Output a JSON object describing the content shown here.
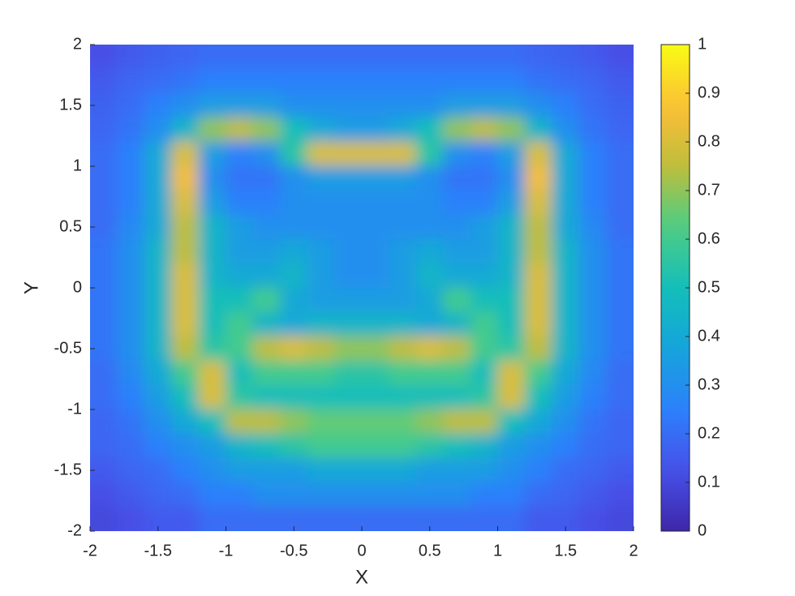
{
  "chart_data": {
    "type": "heatmap",
    "xlabel": "X",
    "ylabel": "Y",
    "x": [
      -1.9,
      -1.7,
      -1.5,
      -1.3,
      -1.1,
      -0.9,
      -0.7,
      -0.5,
      -0.3,
      -0.1,
      0.1,
      0.3,
      0.5,
      0.7,
      0.9,
      1.1,
      1.3,
      1.5,
      1.7,
      1.9
    ],
    "y": [
      1.9,
      1.7,
      1.5,
      1.3,
      1.1,
      0.9,
      0.7,
      0.5,
      0.3,
      0.1,
      -0.1,
      -0.3,
      -0.5,
      -0.7,
      -0.9,
      -1.1,
      -1.3,
      -1.5,
      -1.7,
      -1.9
    ],
    "z": [
      [
        0.12,
        0.15,
        0.17,
        0.18,
        0.2,
        0.2,
        0.2,
        0.2,
        0.2,
        0.2,
        0.2,
        0.2,
        0.2,
        0.2,
        0.2,
        0.2,
        0.18,
        0.17,
        0.15,
        0.12
      ],
      [
        0.15,
        0.18,
        0.2,
        0.22,
        0.25,
        0.25,
        0.25,
        0.25,
        0.25,
        0.25,
        0.25,
        0.25,
        0.25,
        0.25,
        0.25,
        0.25,
        0.22,
        0.2,
        0.18,
        0.15
      ],
      [
        0.17,
        0.2,
        0.25,
        0.3,
        0.35,
        0.35,
        0.35,
        0.3,
        0.3,
        0.3,
        0.3,
        0.3,
        0.3,
        0.35,
        0.35,
        0.35,
        0.3,
        0.25,
        0.2,
        0.17
      ],
      [
        0.18,
        0.22,
        0.3,
        0.45,
        0.7,
        0.75,
        0.7,
        0.5,
        0.4,
        0.35,
        0.35,
        0.4,
        0.5,
        0.7,
        0.75,
        0.7,
        0.45,
        0.3,
        0.22,
        0.18
      ],
      [
        0.2,
        0.25,
        0.4,
        0.8,
        0.35,
        0.25,
        0.3,
        0.55,
        0.8,
        0.8,
        0.8,
        0.8,
        0.55,
        0.3,
        0.25,
        0.35,
        0.8,
        0.4,
        0.25,
        0.2
      ],
      [
        0.2,
        0.25,
        0.4,
        0.85,
        0.3,
        0.22,
        0.22,
        0.3,
        0.35,
        0.35,
        0.35,
        0.35,
        0.3,
        0.22,
        0.22,
        0.3,
        0.85,
        0.4,
        0.25,
        0.2
      ],
      [
        0.2,
        0.25,
        0.4,
        0.8,
        0.35,
        0.25,
        0.25,
        0.3,
        0.3,
        0.3,
        0.3,
        0.3,
        0.3,
        0.25,
        0.25,
        0.35,
        0.8,
        0.4,
        0.25,
        0.2
      ],
      [
        0.2,
        0.28,
        0.4,
        0.75,
        0.45,
        0.35,
        0.3,
        0.3,
        0.3,
        0.3,
        0.3,
        0.3,
        0.3,
        0.3,
        0.35,
        0.45,
        0.75,
        0.4,
        0.28,
        0.2
      ],
      [
        0.22,
        0.3,
        0.45,
        0.75,
        0.45,
        0.35,
        0.35,
        0.4,
        0.35,
        0.3,
        0.3,
        0.35,
        0.4,
        0.35,
        0.35,
        0.45,
        0.75,
        0.45,
        0.3,
        0.22
      ],
      [
        0.22,
        0.3,
        0.45,
        0.8,
        0.45,
        0.4,
        0.4,
        0.45,
        0.35,
        0.3,
        0.3,
        0.35,
        0.45,
        0.4,
        0.4,
        0.45,
        0.8,
        0.45,
        0.3,
        0.22
      ],
      [
        0.22,
        0.3,
        0.45,
        0.8,
        0.5,
        0.5,
        0.6,
        0.4,
        0.35,
        0.35,
        0.35,
        0.35,
        0.4,
        0.6,
        0.5,
        0.5,
        0.8,
        0.45,
        0.3,
        0.22
      ],
      [
        0.22,
        0.3,
        0.45,
        0.8,
        0.5,
        0.6,
        0.45,
        0.4,
        0.45,
        0.45,
        0.45,
        0.45,
        0.4,
        0.45,
        0.6,
        0.5,
        0.8,
        0.45,
        0.3,
        0.22
      ],
      [
        0.22,
        0.3,
        0.45,
        0.75,
        0.55,
        0.6,
        0.75,
        0.8,
        0.75,
        0.7,
        0.7,
        0.75,
        0.8,
        0.75,
        0.6,
        0.55,
        0.75,
        0.45,
        0.3,
        0.22
      ],
      [
        0.2,
        0.28,
        0.4,
        0.6,
        0.8,
        0.5,
        0.6,
        0.6,
        0.6,
        0.55,
        0.55,
        0.6,
        0.6,
        0.6,
        0.5,
        0.8,
        0.6,
        0.4,
        0.28,
        0.2
      ],
      [
        0.2,
        0.25,
        0.35,
        0.5,
        0.8,
        0.55,
        0.5,
        0.5,
        0.5,
        0.5,
        0.5,
        0.5,
        0.5,
        0.5,
        0.55,
        0.8,
        0.5,
        0.35,
        0.25,
        0.2
      ],
      [
        0.18,
        0.22,
        0.3,
        0.4,
        0.5,
        0.75,
        0.75,
        0.7,
        0.65,
        0.65,
        0.65,
        0.65,
        0.7,
        0.75,
        0.75,
        0.5,
        0.4,
        0.3,
        0.22,
        0.18
      ],
      [
        0.18,
        0.2,
        0.25,
        0.3,
        0.35,
        0.45,
        0.5,
        0.55,
        0.6,
        0.6,
        0.6,
        0.6,
        0.55,
        0.5,
        0.45,
        0.35,
        0.3,
        0.25,
        0.2,
        0.18
      ],
      [
        0.15,
        0.18,
        0.2,
        0.25,
        0.3,
        0.35,
        0.35,
        0.35,
        0.4,
        0.4,
        0.4,
        0.4,
        0.35,
        0.35,
        0.35,
        0.3,
        0.25,
        0.2,
        0.18,
        0.15
      ],
      [
        0.12,
        0.15,
        0.18,
        0.2,
        0.25,
        0.25,
        0.3,
        0.3,
        0.3,
        0.3,
        0.3,
        0.3,
        0.3,
        0.3,
        0.25,
        0.25,
        0.2,
        0.18,
        0.15,
        0.12
      ],
      [
        0.1,
        0.12,
        0.15,
        0.15,
        0.2,
        0.2,
        0.2,
        0.2,
        0.2,
        0.2,
        0.2,
        0.2,
        0.2,
        0.2,
        0.2,
        0.2,
        0.15,
        0.15,
        0.12,
        0.1
      ]
    ],
    "xlim": [
      -2,
      2
    ],
    "ylim": [
      -2,
      2
    ],
    "xticks": [
      -2,
      -1.5,
      -1,
      -0.5,
      0,
      0.5,
      1,
      1.5,
      2
    ],
    "yticks": [
      -2,
      -1.5,
      -1,
      -0.5,
      0,
      0.5,
      1,
      1.5,
      2
    ],
    "clim": [
      0,
      1
    ],
    "cticks": [
      0,
      0.1,
      0.2,
      0.3,
      0.4,
      0.5,
      0.6,
      0.7,
      0.8,
      0.9,
      1
    ],
    "colormap": "parula"
  }
}
